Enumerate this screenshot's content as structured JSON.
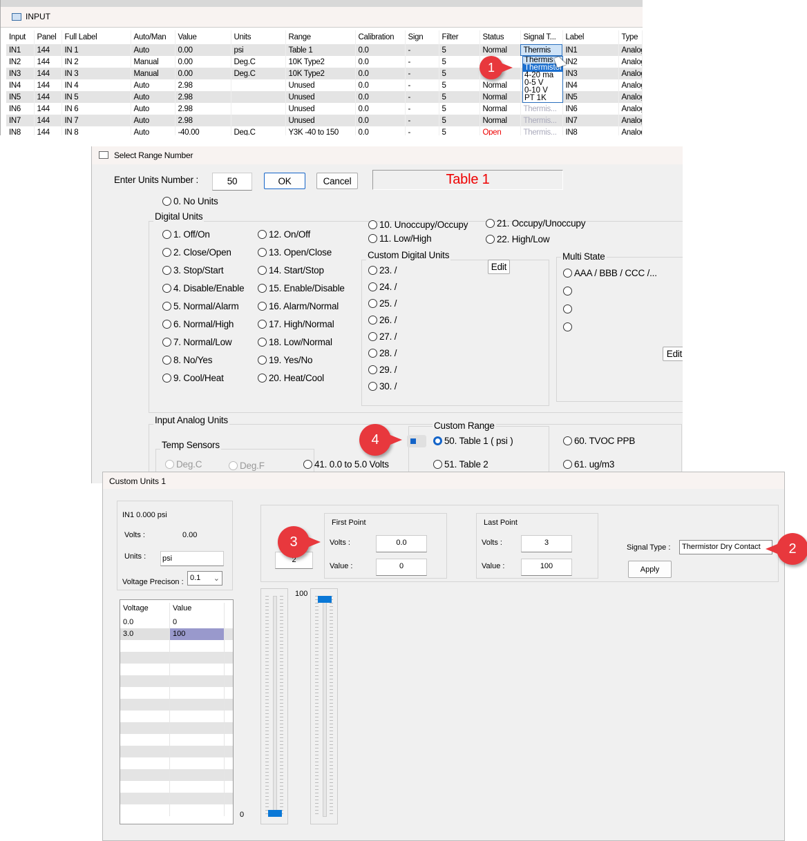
{
  "input_window": {
    "title": "INPUT",
    "columns": [
      "Input",
      "Panel",
      "Full Label",
      "Auto/Man",
      "Value",
      "Units",
      "Range",
      "Calibration",
      "Sign",
      "Filter",
      "Status",
      "Signal T...",
      "Label",
      "Type"
    ],
    "rows": [
      [
        "IN1",
        "144",
        "IN 1",
        "Auto",
        "0.00",
        "psi",
        "Table 1",
        "0.0",
        "-",
        "5",
        "Normal",
        "Thermis",
        "IN1",
        "Analog"
      ],
      [
        "IN2",
        "144",
        "IN 2",
        "Manual",
        "0.00",
        "Deg.C",
        "10K Type2",
        "0.0",
        "-",
        "5",
        "",
        "",
        "IN2",
        "Analog"
      ],
      [
        "IN3",
        "144",
        "IN 3",
        "Manual",
        "0.00",
        "Deg.C",
        "10K Type2",
        "0.0",
        "-",
        "5",
        "",
        "",
        "IN3",
        "Analog"
      ],
      [
        "IN4",
        "144",
        "IN 4",
        "Auto",
        "2.98",
        "",
        "Unused",
        "0.0",
        "-",
        "5",
        "Normal",
        "",
        "IN4",
        "Analog"
      ],
      [
        "IN5",
        "144",
        "IN 5",
        "Auto",
        "2.98",
        "",
        "Unused",
        "0.0",
        "-",
        "5",
        "Normal",
        "",
        "IN5",
        "Analog"
      ],
      [
        "IN6",
        "144",
        "IN 6",
        "Auto",
        "2.98",
        "",
        "Unused",
        "0.0",
        "-",
        "5",
        "Normal",
        "Thermis...",
        "IN6",
        "Analog"
      ],
      [
        "IN7",
        "144",
        "IN 7",
        "Auto",
        "2.98",
        "",
        "Unused",
        "0.0",
        "-",
        "5",
        "Normal",
        "Thermis...",
        "IN7",
        "Analog"
      ],
      [
        "IN8",
        "144",
        "IN 8",
        "Auto",
        "-40.00",
        "Deg.C",
        "Y3K -40 to 150",
        "0.0",
        "-",
        "5",
        "Open",
        "Thermis...",
        "IN8",
        "Analog"
      ]
    ],
    "signal_dropdown": {
      "selected": "Thermis",
      "options": [
        "Thermistor",
        "4-20 ma",
        "0-5 V",
        "0-10 V",
        "PT 1K"
      ],
      "highlighted": "Thermistor"
    },
    "status_open_color": "#e00000"
  },
  "badges": [
    "1",
    "2",
    "3",
    "4"
  ],
  "select_range": {
    "title": "Select Range Number",
    "enter_label": "Enter Units Number :",
    "units_number": "50",
    "ok": "OK",
    "cancel": "Cancel",
    "display": "Table 1",
    "display_color": "#e00000",
    "no_units": "0. No Units",
    "digital_group": "Digital Units",
    "digital_col1": [
      "1. Off/On",
      "2. Close/Open",
      "3. Stop/Start",
      "4. Disable/Enable",
      "5. Normal/Alarm",
      "6. Normal/High",
      "7. Normal/Low",
      "8. No/Yes",
      "9. Cool/Heat"
    ],
    "digital_col2": [
      "12. On/Off",
      "13. Open/Close",
      "14. Start/Stop",
      "15. Enable/Disable",
      "16. Alarm/Normal",
      "17. High/Normal",
      "18. Low/Normal",
      "19. Yes/No",
      "20. Heat/Cool"
    ],
    "digital_col3": [
      "10. Unoccupy/Occupy",
      "11. Low/High"
    ],
    "digital_col4": [
      "21. Occupy/Unoccupy",
      "22. High/Low"
    ],
    "custom_digital_group": "Custom Digital Units",
    "custom_digital": [
      "23.   /",
      "24.   /",
      "25.   /",
      "26.   /",
      "27.   /",
      "28.   /",
      "29.   /",
      "30.   /"
    ],
    "edit": "Edit",
    "multi_state_group": "Multi State",
    "multi_state": [
      "AAA / BBB / CCC /...",
      "",
      "",
      ""
    ],
    "analog_group": "Input Analog Units",
    "temp_group": "Temp Sensors",
    "temp": [
      "Deg.C",
      "Deg.F"
    ],
    "volts": "41.  0.0 to 5.0 Volts",
    "custom_range_group": "Custom Range",
    "custom_range": [
      "50. Table 1 ( psi )",
      "51.  Table 2"
    ],
    "custom_range_selected": "50. Table 1 ( psi )",
    "other": [
      "60.  TVOC  PPB",
      "61.  ug/m3"
    ]
  },
  "custom_units": {
    "title": "Custom Units 1",
    "summary": "IN1  0.000  psi",
    "volts_label": "Volts :",
    "volts_value": "0.00",
    "units_label": "Units :",
    "units_value": "psi",
    "precision_label": "Voltage Precison :",
    "precision_value": "0.1",
    "table_headers": [
      "Voltage",
      "Value"
    ],
    "table_rows": [
      [
        "0.0",
        "0"
      ],
      [
        "3.0",
        "100"
      ]
    ],
    "point_count": "2",
    "first_point": {
      "title": "First Point",
      "volts_label": "Volts :",
      "volts": "0.0",
      "value_label": "Value :",
      "value": "0"
    },
    "last_point": {
      "title": "Last Point",
      "volts_label": "Volts :",
      "volts": "3",
      "value_label": "Value :",
      "value": "100"
    },
    "signal_type_label": "Signal Type :",
    "signal_type": "Thermistor Dry Contact",
    "apply": "Apply",
    "slider_max_label": "100",
    "slider_min_label": "0",
    "slider_left_level": 0,
    "slider_right_level": 100,
    "accent": "#0a78d7"
  }
}
